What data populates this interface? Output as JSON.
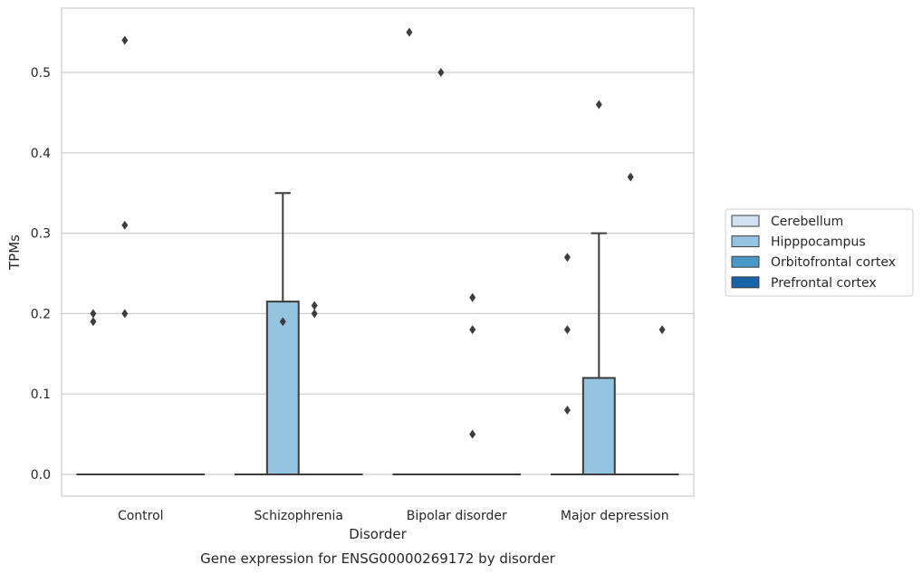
{
  "chart_data": {
    "type": "box",
    "title": "Gene expression for ENSG00000269172 by disorder",
    "xlabel": "Disorder",
    "ylabel": "TPMs",
    "categories": [
      "Control",
      "Schizophrenia",
      "Bipolar disorder",
      "Major depression"
    ],
    "ylim": [
      -0.027,
      0.58
    ],
    "yticks": [
      0.0,
      0.1,
      0.2,
      0.3,
      0.4,
      0.5
    ],
    "ytick_labels": [
      "0.0",
      "0.1",
      "0.2",
      "0.3",
      "0.4",
      "0.5"
    ],
    "grid": "horizontal",
    "legend_position": "right",
    "series": [
      {
        "name": "Cerebellum",
        "color": "#d0e1f2",
        "boxes": [
          {
            "category": "Control",
            "q1": 0,
            "median": 0,
            "q3": 0,
            "whisker_low": 0,
            "whisker_high": 0,
            "outliers": [
              0.19,
              0.2
            ]
          },
          {
            "category": "Schizophrenia",
            "q1": 0,
            "median": 0,
            "q3": 0,
            "whisker_low": 0,
            "whisker_high": 0,
            "outliers": []
          },
          {
            "category": "Bipolar disorder",
            "q1": 0,
            "median": 0,
            "q3": 0,
            "whisker_low": 0,
            "whisker_high": 0,
            "outliers": [
              0.55
            ]
          },
          {
            "category": "Major depression",
            "q1": 0,
            "median": 0,
            "q3": 0,
            "whisker_low": 0,
            "whisker_high": 0,
            "outliers": [
              0.08,
              0.18,
              0.27
            ]
          }
        ]
      },
      {
        "name": "Hipppocampus",
        "color": "#94c4df",
        "boxes": [
          {
            "category": "Control",
            "q1": 0,
            "median": 0,
            "q3": 0,
            "whisker_low": 0,
            "whisker_high": 0,
            "outliers": [
              0.2,
              0.31,
              0.54
            ]
          },
          {
            "category": "Schizophrenia",
            "q1": 0,
            "median": 0,
            "q3": 0.215,
            "whisker_low": 0,
            "whisker_high": 0.35,
            "outliers": [
              0.19
            ]
          },
          {
            "category": "Bipolar disorder",
            "q1": 0,
            "median": 0,
            "q3": 0,
            "whisker_low": 0,
            "whisker_high": 0,
            "outliers": [
              0.5
            ]
          },
          {
            "category": "Major depression",
            "q1": 0,
            "median": 0,
            "q3": 0.12,
            "whisker_low": 0,
            "whisker_high": 0.3,
            "outliers": [
              0.46
            ]
          }
        ]
      },
      {
        "name": "Orbitofrontal cortex",
        "color": "#4a98c9",
        "boxes": [
          {
            "category": "Control",
            "q1": 0,
            "median": 0,
            "q3": 0,
            "whisker_low": 0,
            "whisker_high": 0,
            "outliers": []
          },
          {
            "category": "Schizophrenia",
            "q1": 0,
            "median": 0,
            "q3": 0,
            "whisker_low": 0,
            "whisker_high": 0,
            "outliers": [
              0.2,
              0.21
            ]
          },
          {
            "category": "Bipolar disorder",
            "q1": 0,
            "median": 0,
            "q3": 0,
            "whisker_low": 0,
            "whisker_high": 0,
            "outliers": [
              0.05,
              0.18,
              0.22
            ]
          },
          {
            "category": "Major depression",
            "q1": 0,
            "median": 0,
            "q3": 0,
            "whisker_low": 0,
            "whisker_high": 0,
            "outliers": [
              0.37
            ]
          }
        ]
      },
      {
        "name": "Prefrontal cortex",
        "color": "#1764ab",
        "boxes": [
          {
            "category": "Control",
            "q1": 0,
            "median": 0,
            "q3": 0,
            "whisker_low": 0,
            "whisker_high": 0,
            "outliers": []
          },
          {
            "category": "Schizophrenia",
            "q1": 0,
            "median": 0,
            "q3": 0,
            "whisker_low": 0,
            "whisker_high": 0,
            "outliers": []
          },
          {
            "category": "Bipolar disorder",
            "q1": 0,
            "median": 0,
            "q3": 0,
            "whisker_low": 0,
            "whisker_high": 0,
            "outliers": []
          },
          {
            "category": "Major depression",
            "q1": 0,
            "median": 0,
            "q3": 0,
            "whisker_low": 0,
            "whisker_high": 0,
            "outliers": [
              0.18
            ]
          }
        ]
      }
    ]
  }
}
